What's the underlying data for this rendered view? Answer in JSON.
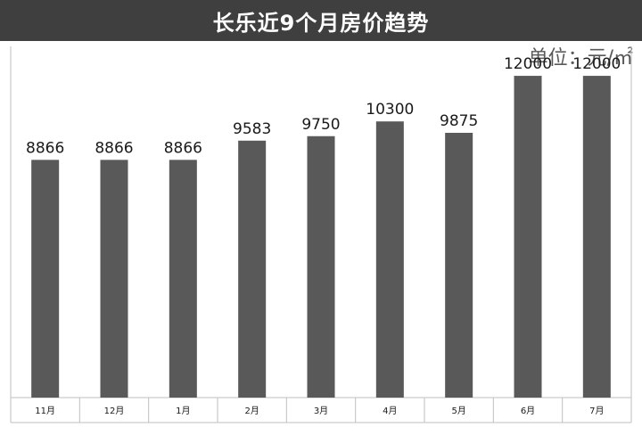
{
  "header": {
    "title": "长乐近9个月房价趋势"
  },
  "unit_label": "单位：元/㎡",
  "colors": {
    "bar": "#595959",
    "title_bg": "#3f3f3f",
    "axis": "#bfbfbf"
  },
  "chart_data": {
    "type": "bar",
    "title": "长乐近9个月房价趋势",
    "ylabel": "单位：元/㎡",
    "xlabel": "",
    "categories": [
      "11月",
      "12月",
      "1月",
      "2月",
      "3月",
      "4月",
      "5月",
      "6月",
      "7月"
    ],
    "values": [
      8866,
      8866,
      8866,
      9583,
      9750,
      10300,
      9875,
      12000,
      12000
    ],
    "ylim": [
      0,
      13100
    ],
    "grid": false,
    "data_labels": true
  }
}
